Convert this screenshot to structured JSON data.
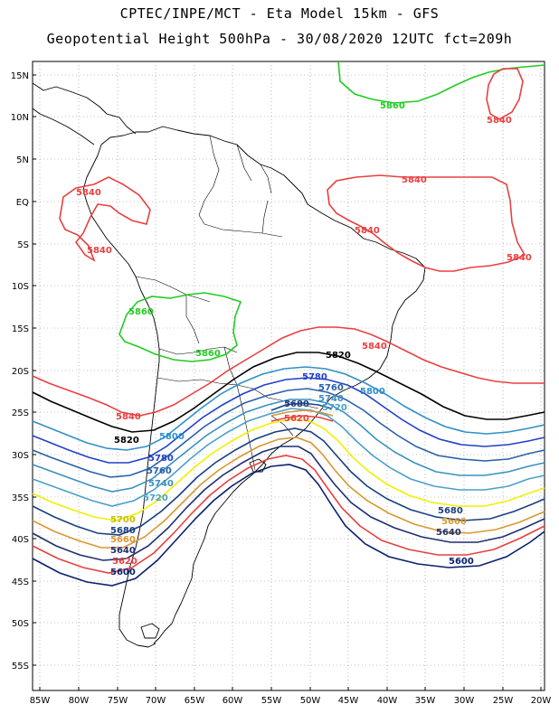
{
  "title": {
    "line1": "CPTEC/INPE/MCT -  Eta Model 15km - GFS",
    "line2": "Geopotential Height 500hPa - 30/08/2020 12UTC fct=209h"
  },
  "map": {
    "lat_labels": [
      "15N",
      "10N",
      "5N",
      "EQ",
      "5S",
      "10S",
      "15S",
      "20S",
      "25S",
      "30S",
      "35S",
      "40S",
      "45S",
      "50S",
      "55S"
    ],
    "lon_labels": [
      "85W",
      "80W",
      "75W",
      "70W",
      "65W",
      "60W",
      "55W",
      "50W",
      "45W",
      "40W",
      "35W",
      "30W",
      "25W",
      "20W"
    ],
    "contour_colors": {
      "5560": "#101060",
      "5580": "#1a2e80",
      "5600": "#0a1f6e",
      "5620": "#e84040",
      "5640": "#1f2f70",
      "5660": "#d89830",
      "5680": "#1a3f80",
      "5700": "#f0f000",
      "5720": "#4aa0c8",
      "5740": "#3a90c0",
      "5760": "#2860a8",
      "5780": "#2040c8",
      "5800": "#3090c8",
      "5820": "#000000",
      "5840": "#e84040",
      "5860": "#20cc20"
    },
    "contour_labels": [
      {
        "text": "5860",
        "color": "#20cc20"
      },
      {
        "text": "5860",
        "color": "#20cc20"
      },
      {
        "text": "5860",
        "color": "#20cc20"
      },
      {
        "text": "5840",
        "color": "#e84040"
      },
      {
        "text": "5840",
        "color": "#e84040"
      },
      {
        "text": "5840",
        "color": "#e84040"
      },
      {
        "text": "5840",
        "color": "#e84040"
      },
      {
        "text": "5840",
        "color": "#e84040"
      },
      {
        "text": "5840",
        "color": "#e84040"
      },
      {
        "text": "5840",
        "color": "#e84040"
      },
      {
        "text": "5840",
        "color": "#e84040"
      },
      {
        "text": "5820",
        "color": "#000000"
      },
      {
        "text": "5820",
        "color": "#000000"
      },
      {
        "text": "5800",
        "color": "#3090c8"
      },
      {
        "text": "5800",
        "color": "#3090c8"
      },
      {
        "text": "5780",
        "color": "#2040c8"
      },
      {
        "text": "5780",
        "color": "#2040c8"
      },
      {
        "text": "5760",
        "color": "#2860a8"
      },
      {
        "text": "5760",
        "color": "#2860a8"
      },
      {
        "text": "5740",
        "color": "#3a90c0"
      },
      {
        "text": "5740",
        "color": "#3a90c0"
      },
      {
        "text": "5720",
        "color": "#4aa0c8"
      },
      {
        "text": "5720",
        "color": "#4aa0c8"
      },
      {
        "text": "5700",
        "color": "#f0f000"
      },
      {
        "text": "5680",
        "color": "#1a3f80"
      },
      {
        "text": "5680",
        "color": "#1a3f80"
      },
      {
        "text": "5680",
        "color": "#1a3f80"
      },
      {
        "text": "5660",
        "color": "#d89830"
      },
      {
        "text": "5660",
        "color": "#d89830"
      },
      {
        "text": "5640",
        "color": "#1f2f70"
      },
      {
        "text": "5640",
        "color": "#1f2f70"
      },
      {
        "text": "5620",
        "color": "#e84040"
      },
      {
        "text": "5620",
        "color": "#e84040"
      },
      {
        "text": "5600",
        "color": "#0a1f6e"
      },
      {
        "text": "5600",
        "color": "#0a1f6e"
      }
    ]
  }
}
